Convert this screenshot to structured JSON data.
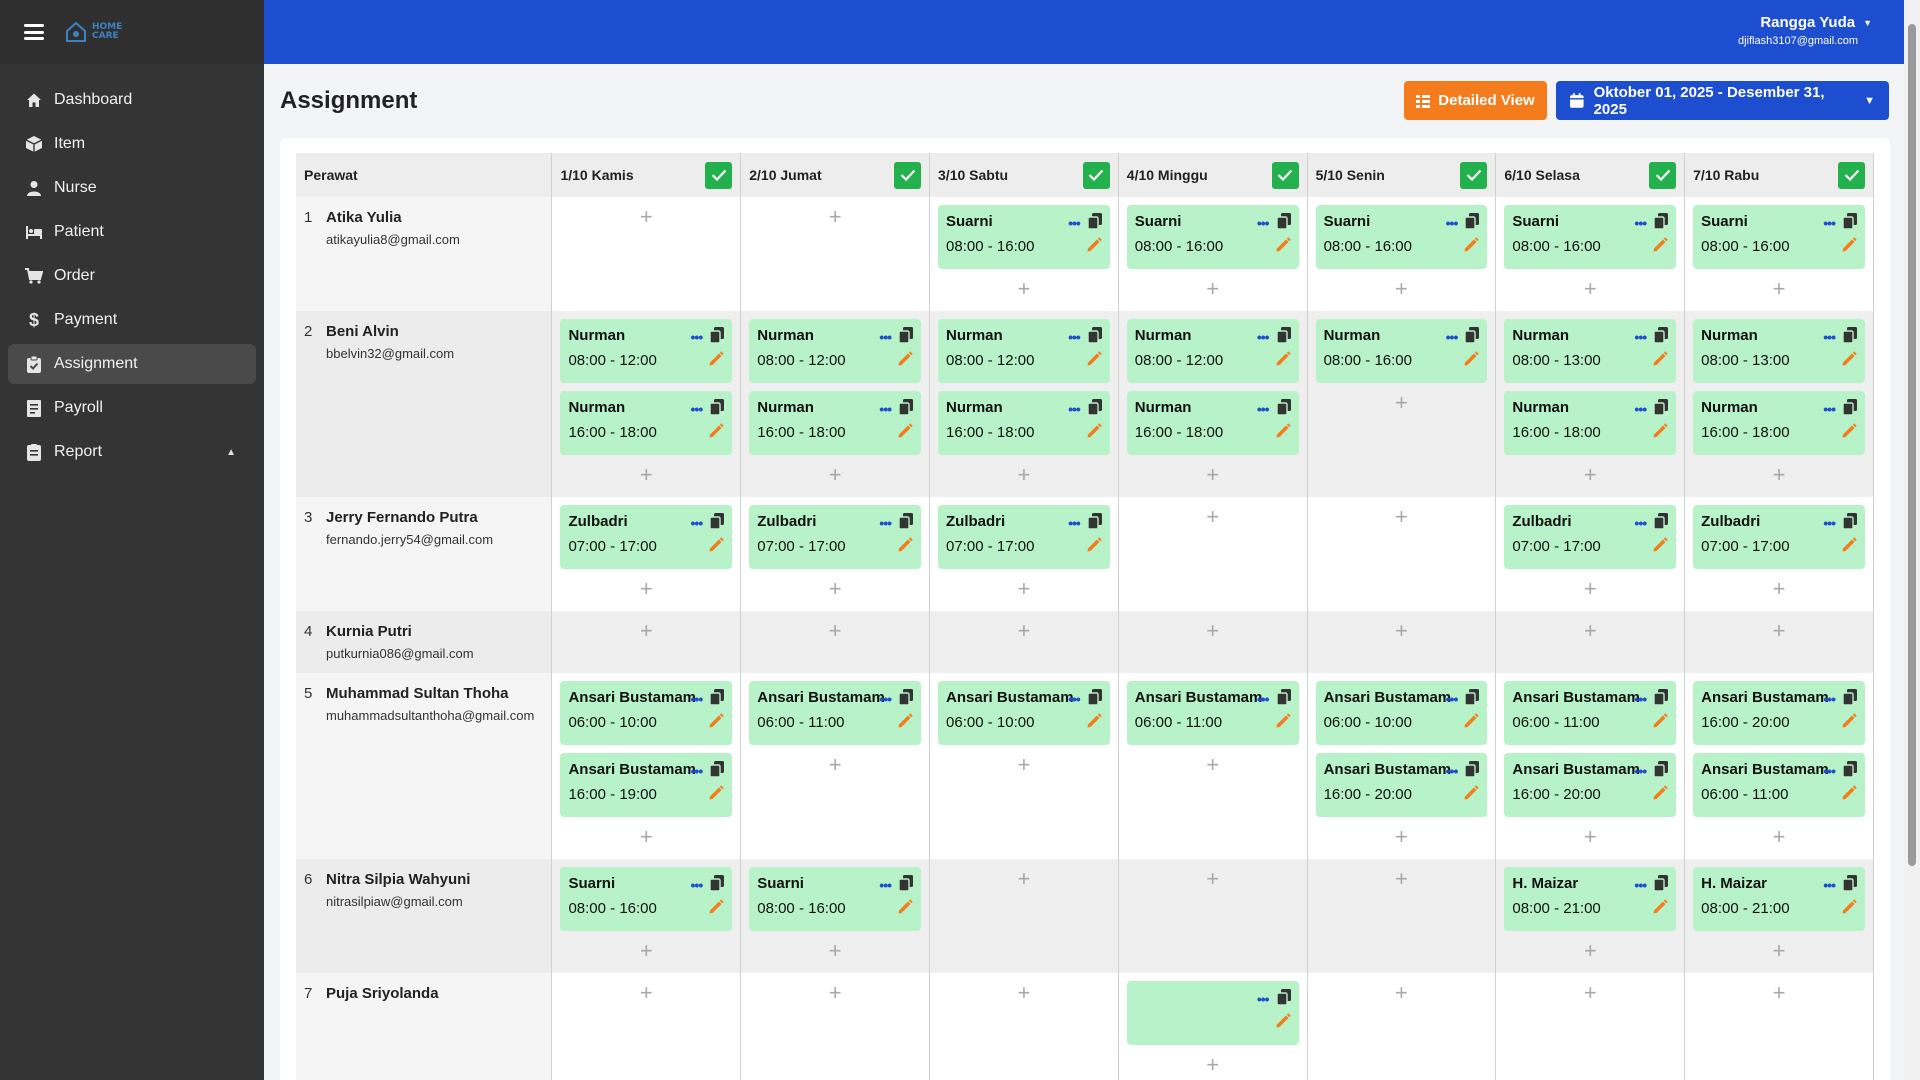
{
  "app": {
    "logo_text_line1": "HOME",
    "logo_text_line2": "CARE"
  },
  "sidebar": {
    "items": [
      {
        "label": "Dashboard",
        "icon": "home-icon"
      },
      {
        "label": "Item",
        "icon": "box-icon"
      },
      {
        "label": "Nurse",
        "icon": "user-icon"
      },
      {
        "label": "Patient",
        "icon": "bed-icon"
      },
      {
        "label": "Order",
        "icon": "cart-icon"
      },
      {
        "label": "Payment",
        "icon": "dollar-icon"
      },
      {
        "label": "Assignment",
        "icon": "clipboard-check-icon",
        "active": true
      },
      {
        "label": "Payroll",
        "icon": "receipt-icon"
      },
      {
        "label": "Report",
        "icon": "report-icon",
        "expandable": true
      }
    ]
  },
  "user": {
    "name": "Rangga Yuda",
    "email": "djiflash3107@gmail.com"
  },
  "page": {
    "title": "Assignment",
    "detailed_view_label": "Detailed View",
    "date_range": "Oktober 01, 2025 - Desember 31, 2025"
  },
  "table": {
    "first_header": "Perawat",
    "days": [
      "1/10 Kamis",
      "2/10 Jumat",
      "3/10 Sabtu",
      "4/10 Minggu",
      "5/10 Senin",
      "6/10 Selasa",
      "7/10 Rabu"
    ],
    "nurses": [
      {
        "no": "1",
        "name": "Atika Yulia",
        "email": "atikayulia8@gmail.com",
        "days": [
          [],
          [],
          [
            {
              "p": "Suarni",
              "t": "08:00 - 16:00"
            }
          ],
          [
            {
              "p": "Suarni",
              "t": "08:00 - 16:00"
            }
          ],
          [
            {
              "p": "Suarni",
              "t": "08:00 - 16:00"
            }
          ],
          [
            {
              "p": "Suarni",
              "t": "08:00 - 16:00"
            }
          ],
          [
            {
              "p": "Suarni",
              "t": "08:00 - 16:00"
            }
          ]
        ]
      },
      {
        "no": "2",
        "name": "Beni Alvin",
        "email": "bbelvin32@gmail.com",
        "days": [
          [
            {
              "p": "Nurman",
              "t": "08:00 - 12:00"
            },
            {
              "p": "Nurman",
              "t": "16:00 - 18:00"
            }
          ],
          [
            {
              "p": "Nurman",
              "t": "08:00 - 12:00"
            },
            {
              "p": "Nurman",
              "t": "16:00 - 18:00"
            }
          ],
          [
            {
              "p": "Nurman",
              "t": "08:00 - 12:00"
            },
            {
              "p": "Nurman",
              "t": "16:00 - 18:00"
            }
          ],
          [
            {
              "p": "Nurman",
              "t": "08:00 - 12:00"
            },
            {
              "p": "Nurman",
              "t": "16:00 - 18:00"
            }
          ],
          [
            {
              "p": "Nurman",
              "t": "08:00 - 16:00"
            }
          ],
          [
            {
              "p": "Nurman",
              "t": "08:00 - 13:00"
            },
            {
              "p": "Nurman",
              "t": "16:00 - 18:00"
            }
          ],
          [
            {
              "p": "Nurman",
              "t": "08:00 - 13:00"
            },
            {
              "p": "Nurman",
              "t": "16:00 - 18:00"
            }
          ]
        ]
      },
      {
        "no": "3",
        "name": "Jerry Fernando Putra",
        "email": "fernando.jerry54@gmail.com",
        "days": [
          [
            {
              "p": "Zulbadri",
              "t": "07:00 - 17:00"
            }
          ],
          [
            {
              "p": "Zulbadri",
              "t": "07:00 - 17:00"
            }
          ],
          [
            {
              "p": "Zulbadri",
              "t": "07:00 - 17:00"
            }
          ],
          [],
          [],
          [
            {
              "p": "Zulbadri",
              "t": "07:00 - 17:00"
            }
          ],
          [
            {
              "p": "Zulbadri",
              "t": "07:00 - 17:00"
            }
          ]
        ]
      },
      {
        "no": "4",
        "name": "Kurnia Putri",
        "email": "putkurnia086@gmail.com",
        "days": [
          [],
          [],
          [],
          [],
          [],
          [],
          []
        ]
      },
      {
        "no": "5",
        "name": "Muhammad Sultan Thoha",
        "email": "muhammadsultanthoha@gmail.com",
        "days": [
          [
            {
              "p": "Ansari Bustamam",
              "t": "06:00 - 10:00"
            },
            {
              "p": "Ansari Bustamam",
              "t": "16:00 - 19:00"
            }
          ],
          [
            {
              "p": "Ansari Bustamam",
              "t": "06:00 - 11:00"
            }
          ],
          [
            {
              "p": "Ansari Bustamam",
              "t": "06:00 - 10:00"
            }
          ],
          [
            {
              "p": "Ansari Bustamam",
              "t": "06:00 - 11:00"
            }
          ],
          [
            {
              "p": "Ansari Bustamam",
              "t": "06:00 - 10:00"
            },
            {
              "p": "Ansari Bustamam",
              "t": "16:00 - 20:00"
            }
          ],
          [
            {
              "p": "Ansari Bustamam",
              "t": "06:00 - 11:00"
            },
            {
              "p": "Ansari Bustamam",
              "t": "16:00 - 20:00"
            }
          ],
          [
            {
              "p": "Ansari Bustamam",
              "t": "16:00 - 20:00"
            },
            {
              "p": "Ansari Bustamam",
              "t": "06:00 - 11:00"
            }
          ]
        ]
      },
      {
        "no": "6",
        "name": "Nitra Silpia Wahyuni",
        "email": "nitrasilpiaw@gmail.com",
        "days": [
          [
            {
              "p": "Suarni",
              "t": "08:00 - 16:00"
            }
          ],
          [
            {
              "p": "Suarni",
              "t": "08:00 - 16:00"
            }
          ],
          [],
          [],
          [],
          [
            {
              "p": "H. Maizar",
              "t": "08:00 - 21:00"
            }
          ],
          [
            {
              "p": "H. Maizar",
              "t": "08:00 - 21:00"
            }
          ]
        ]
      },
      {
        "no": "7",
        "name": "Puja Sriyolanda",
        "email": "",
        "days": [
          [],
          [],
          [],
          [
            {
              "p": "",
              "t": ""
            }
          ],
          [],
          [],
          []
        ]
      }
    ]
  },
  "colors": {
    "sidebar_bg": "#343434",
    "topbar_bg": "#1d4ecf",
    "accent_orange": "#f47c1d",
    "card_green": "#b8f2c8",
    "check_green": "#22b14c"
  }
}
